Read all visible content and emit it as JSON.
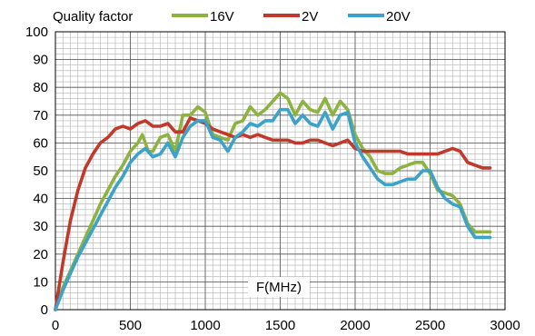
{
  "chart_data": {
    "type": "line",
    "ylabel": "Quality factor",
    "xlabel": "F(MHz)",
    "xlim": [
      0,
      3000
    ],
    "ylim": [
      0,
      100
    ],
    "xticks": [
      0,
      500,
      1000,
      1500,
      2000,
      2500,
      3000
    ],
    "yticks": [
      0,
      10,
      20,
      30,
      40,
      50,
      60,
      70,
      80,
      90,
      100
    ],
    "grid": true,
    "legend": "top",
    "series": [
      {
        "name": "16V",
        "color": "#8DB33F",
        "points": [
          [
            0,
            0
          ],
          [
            50,
            8
          ],
          [
            100,
            14
          ],
          [
            150,
            20
          ],
          [
            200,
            26
          ],
          [
            250,
            32
          ],
          [
            300,
            38
          ],
          [
            350,
            43
          ],
          [
            400,
            48
          ],
          [
            450,
            52
          ],
          [
            500,
            57
          ],
          [
            550,
            60
          ],
          [
            580,
            63
          ],
          [
            620,
            57
          ],
          [
            650,
            57
          ],
          [
            700,
            62
          ],
          [
            750,
            63
          ],
          [
            800,
            57
          ],
          [
            850,
            70
          ],
          [
            900,
            70
          ],
          [
            950,
            73
          ],
          [
            1000,
            71
          ],
          [
            1050,
            63
          ],
          [
            1100,
            62
          ],
          [
            1150,
            61
          ],
          [
            1200,
            67
          ],
          [
            1250,
            68
          ],
          [
            1300,
            73
          ],
          [
            1350,
            70
          ],
          [
            1400,
            72
          ],
          [
            1450,
            75
          ],
          [
            1500,
            78
          ],
          [
            1550,
            76
          ],
          [
            1600,
            70
          ],
          [
            1650,
            75
          ],
          [
            1700,
            72
          ],
          [
            1750,
            71
          ],
          [
            1800,
            76
          ],
          [
            1850,
            70
          ],
          [
            1900,
            75
          ],
          [
            1950,
            72
          ],
          [
            2000,
            63
          ],
          [
            2050,
            58
          ],
          [
            2100,
            55
          ],
          [
            2150,
            50
          ],
          [
            2200,
            49
          ],
          [
            2250,
            49
          ],
          [
            2300,
            51
          ],
          [
            2350,
            52
          ],
          [
            2400,
            53
          ],
          [
            2450,
            53
          ],
          [
            2500,
            49
          ],
          [
            2550,
            43
          ],
          [
            2600,
            42
          ],
          [
            2650,
            41
          ],
          [
            2700,
            38
          ],
          [
            2750,
            31
          ],
          [
            2800,
            28
          ],
          [
            2850,
            28
          ],
          [
            2900,
            28
          ]
        ]
      },
      {
        "name": "2V",
        "color": "#C0392B",
        "points": [
          [
            0,
            0
          ],
          [
            50,
            17
          ],
          [
            100,
            32
          ],
          [
            150,
            43
          ],
          [
            200,
            51
          ],
          [
            250,
            56
          ],
          [
            300,
            60
          ],
          [
            350,
            62
          ],
          [
            400,
            65
          ],
          [
            450,
            66
          ],
          [
            500,
            65
          ],
          [
            550,
            67
          ],
          [
            600,
            68
          ],
          [
            650,
            66
          ],
          [
            700,
            66
          ],
          [
            750,
            67
          ],
          [
            800,
            64
          ],
          [
            850,
            64
          ],
          [
            900,
            69
          ],
          [
            950,
            68
          ],
          [
            1000,
            67
          ],
          [
            1050,
            65
          ],
          [
            1100,
            64
          ],
          [
            1150,
            63
          ],
          [
            1200,
            62
          ],
          [
            1250,
            63
          ],
          [
            1300,
            62
          ],
          [
            1350,
            63
          ],
          [
            1400,
            62
          ],
          [
            1450,
            61
          ],
          [
            1500,
            61
          ],
          [
            1550,
            61
          ],
          [
            1600,
            60
          ],
          [
            1650,
            60
          ],
          [
            1700,
            61
          ],
          [
            1750,
            61
          ],
          [
            1800,
            60
          ],
          [
            1850,
            59
          ],
          [
            1900,
            60
          ],
          [
            1950,
            61
          ],
          [
            2000,
            58
          ],
          [
            2050,
            57
          ],
          [
            2100,
            57
          ],
          [
            2150,
            57
          ],
          [
            2200,
            57
          ],
          [
            2250,
            57
          ],
          [
            2300,
            57
          ],
          [
            2350,
            56
          ],
          [
            2400,
            56
          ],
          [
            2450,
            56
          ],
          [
            2500,
            56
          ],
          [
            2550,
            56
          ],
          [
            2600,
            57
          ],
          [
            2650,
            58
          ],
          [
            2700,
            57
          ],
          [
            2750,
            53
          ],
          [
            2800,
            52
          ],
          [
            2850,
            51
          ],
          [
            2900,
            51
          ]
        ]
      },
      {
        "name": "20V",
        "color": "#3BA3C9",
        "points": [
          [
            0,
            0
          ],
          [
            50,
            7
          ],
          [
            100,
            13
          ],
          [
            150,
            19
          ],
          [
            200,
            24
          ],
          [
            250,
            29
          ],
          [
            300,
            34
          ],
          [
            350,
            39
          ],
          [
            400,
            44
          ],
          [
            450,
            48
          ],
          [
            500,
            53
          ],
          [
            550,
            56
          ],
          [
            600,
            58
          ],
          [
            650,
            55
          ],
          [
            700,
            56
          ],
          [
            750,
            60
          ],
          [
            800,
            55
          ],
          [
            850,
            62
          ],
          [
            900,
            66
          ],
          [
            950,
            68
          ],
          [
            1000,
            68
          ],
          [
            1050,
            62
          ],
          [
            1100,
            61
          ],
          [
            1150,
            57
          ],
          [
            1200,
            62
          ],
          [
            1250,
            64
          ],
          [
            1300,
            67
          ],
          [
            1350,
            66
          ],
          [
            1400,
            68
          ],
          [
            1450,
            68
          ],
          [
            1500,
            72
          ],
          [
            1550,
            72
          ],
          [
            1600,
            67
          ],
          [
            1650,
            70
          ],
          [
            1700,
            67
          ],
          [
            1750,
            66
          ],
          [
            1800,
            71
          ],
          [
            1850,
            65
          ],
          [
            1900,
            70
          ],
          [
            1950,
            71
          ],
          [
            2000,
            60
          ],
          [
            2050,
            55
          ],
          [
            2100,
            51
          ],
          [
            2150,
            47
          ],
          [
            2200,
            45
          ],
          [
            2250,
            45
          ],
          [
            2300,
            46
          ],
          [
            2350,
            47
          ],
          [
            2400,
            47
          ],
          [
            2450,
            50
          ],
          [
            2500,
            50
          ],
          [
            2550,
            44
          ],
          [
            2600,
            40
          ],
          [
            2650,
            38
          ],
          [
            2700,
            37
          ],
          [
            2750,
            30
          ],
          [
            2800,
            26
          ],
          [
            2850,
            26
          ],
          [
            2900,
            26
          ]
        ]
      }
    ]
  }
}
